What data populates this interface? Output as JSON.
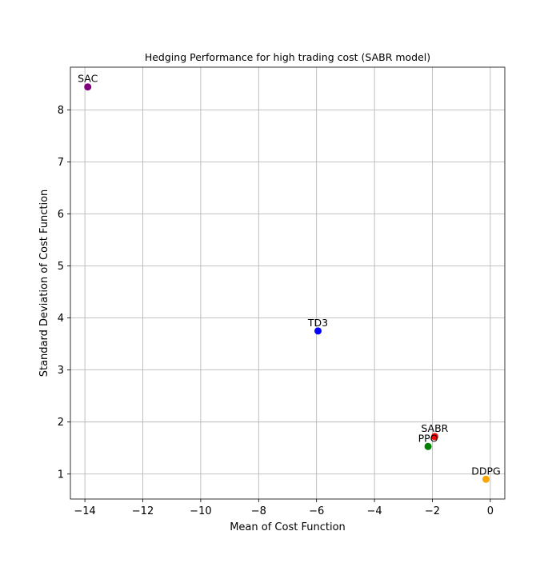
{
  "chart_data": {
    "type": "scatter",
    "title": "Hedging Performance for high trading cost (SABR model)",
    "xlabel": "Mean of Cost Function",
    "ylabel": "Standard Deviation of Cost Function",
    "xlim": [
      -14.5,
      0.5
    ],
    "ylim": [
      0.52,
      8.82
    ],
    "xticks": [
      -14,
      -12,
      -10,
      -8,
      -6,
      -4,
      -2,
      0
    ],
    "yticks": [
      1,
      2,
      3,
      4,
      5,
      6,
      7,
      8
    ],
    "grid": true,
    "points": [
      {
        "label": "SAC",
        "x": -13.9,
        "y": 8.44,
        "color": "#800080"
      },
      {
        "label": "TD3",
        "x": -5.95,
        "y": 3.75,
        "color": "#0000ff"
      },
      {
        "label": "SABR",
        "x": -1.92,
        "y": 1.72,
        "color": "#ff0000"
      },
      {
        "label": "PPO",
        "x": -2.15,
        "y": 1.53,
        "color": "#008000"
      },
      {
        "label": "DDPG",
        "x": -0.15,
        "y": 0.9,
        "color": "#ffa500"
      }
    ]
  }
}
